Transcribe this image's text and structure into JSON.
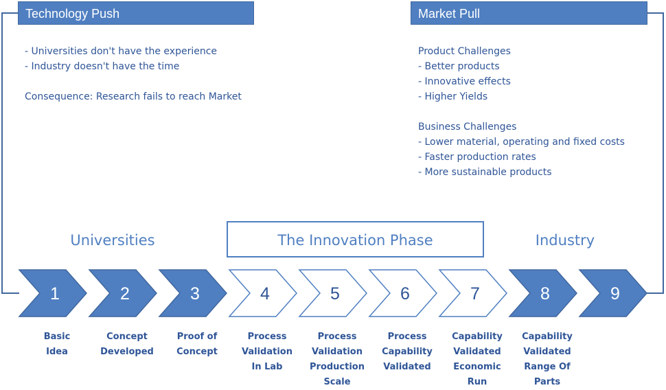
{
  "technology_push": {
    "title": "Technology Push",
    "bullets": [
      "- Universities don't have the experience",
      "- Industry doesn't have the time"
    ],
    "consequence": "Consequence: Research fails to reach Market"
  },
  "market_pull": {
    "title": "Market Pull",
    "product_heading": "Product Challenges",
    "product_bullets": [
      "- Better products",
      "- Innovative effects",
      "- Higher Yields"
    ],
    "business_heading": "Business Challenges",
    "business_bullets": [
      "- Lower material, operating and fixed costs",
      "- Faster production rates",
      "- More sustainable products"
    ]
  },
  "phases": {
    "universities": "Universities",
    "innovation": "The Innovation Phase",
    "industry": "Industry"
  },
  "steps": [
    {
      "number": "1",
      "filled": true,
      "label": [
        "Basic",
        "Idea"
      ]
    },
    {
      "number": "2",
      "filled": true,
      "label": [
        "Concept",
        "Developed"
      ]
    },
    {
      "number": "3",
      "filled": true,
      "label": [
        "Proof of",
        "Concept"
      ]
    },
    {
      "number": "4",
      "filled": false,
      "label": [
        "Process",
        "Validation",
        "In Lab"
      ]
    },
    {
      "number": "5",
      "filled": false,
      "label": [
        "Process",
        "Validation",
        "Production",
        "Scale"
      ]
    },
    {
      "number": "6",
      "filled": false,
      "label": [
        "Process",
        "Capability",
        "Validated"
      ]
    },
    {
      "number": "7",
      "filled": false,
      "label": [
        "Capability",
        "Validated",
        "Economic",
        "Run"
      ]
    },
    {
      "number": "8",
      "filled": true,
      "label": [
        "Capability",
        "Validated",
        "Range Of",
        "Parts"
      ]
    },
    {
      "number": "9",
      "filled": true,
      "label": []
    }
  ],
  "colors": {
    "fill": "#4f7fc1",
    "stroke": "#41679e",
    "outline_text": "#2f5597",
    "filled_text": "#ffffff"
  }
}
